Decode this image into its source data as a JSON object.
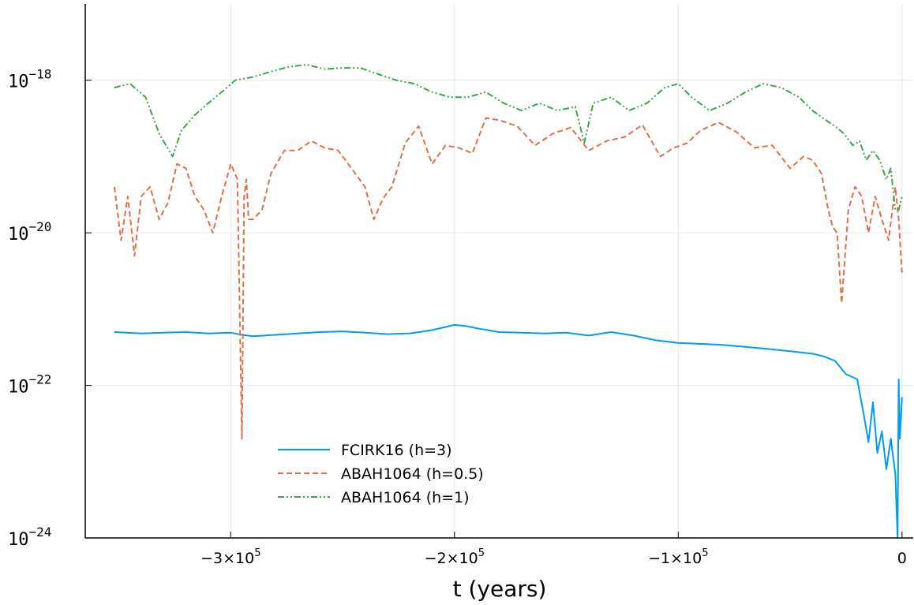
{
  "chart_data": {
    "type": "line",
    "title": "",
    "xlabel": "t (years)",
    "ylabel": "",
    "xlim": [
      -365000,
      5000
    ],
    "ylim": [
      1e-24,
      1e-17
    ],
    "y_scale": "log",
    "grid": true,
    "legend_position": "bottom-left",
    "x_ticks": [
      {
        "value": -300000,
        "label": "−3×10",
        "exp": "5"
      },
      {
        "value": -200000,
        "label": "−2×10",
        "exp": "5"
      },
      {
        "value": -100000,
        "label": "−1×10",
        "exp": "5"
      },
      {
        "value": 0,
        "label": "0",
        "exp": ""
      }
    ],
    "y_ticks": [
      {
        "value": 1e-18,
        "label": "10",
        "exp": "−18"
      },
      {
        "value": 1e-20,
        "label": "10",
        "exp": "−20"
      },
      {
        "value": 1e-22,
        "label": "10",
        "exp": "−22"
      },
      {
        "value": 1e-24,
        "label": "10",
        "exp": "−24"
      }
    ],
    "series": [
      {
        "name": "FCIRK16 (h=3)",
        "color": "#009af9",
        "dash": "solid",
        "x": [
          -352000,
          -340000,
          -330000,
          -320000,
          -310000,
          -300000,
          -295000,
          -290000,
          -280000,
          -270000,
          -260000,
          -250000,
          -240000,
          -230000,
          -220000,
          -210000,
          -200000,
          -195000,
          -190000,
          -180000,
          -170000,
          -160000,
          -150000,
          -140000,
          -130000,
          -120000,
          -110000,
          -100000,
          -90000,
          -80000,
          -70000,
          -60000,
          -50000,
          -45000,
          -40000,
          -35000,
          -30000,
          -25000,
          -20000,
          -17000,
          -15000,
          -13000,
          -11000,
          -9000,
          -7000,
          -5000,
          -3000,
          -2000,
          -1500,
          -1000,
          0
        ],
        "y": [
          5e-22,
          4.8e-22,
          4.9e-22,
          5e-22,
          4.8e-22,
          4.9e-22,
          4.6e-22,
          4.4e-22,
          4.6e-22,
          4.8e-22,
          5e-22,
          5.1e-22,
          4.9e-22,
          4.7e-22,
          4.8e-22,
          5.3e-22,
          6.2e-22,
          6e-22,
          5.6e-22,
          5e-22,
          4.9e-22,
          4.8e-22,
          4.9e-22,
          4.5e-22,
          5e-22,
          4.5e-22,
          3.9e-22,
          3.6e-22,
          3.5e-22,
          3.4e-22,
          3.2e-22,
          3e-22,
          2.8e-22,
          2.7e-22,
          2.6e-22,
          2.4e-22,
          2.1e-22,
          1.4e-22,
          1.2e-22,
          4e-23,
          1.8e-23,
          6e-23,
          1.3e-23,
          2.5e-23,
          8e-24,
          2e-23,
          7e-24,
          1e-24,
          1.2e-22,
          2e-23,
          7e-23
        ]
      },
      {
        "name": "ABAH1064 (h=0.5)",
        "color": "#e26f46",
        "dash": "dashed",
        "x": [
          -352000,
          -349000,
          -346000,
          -343000,
          -340000,
          -336000,
          -332000,
          -328000,
          -324000,
          -320000,
          -316000,
          -312000,
          -308000,
          -304000,
          -300000,
          -297000,
          -295000,
          -294000,
          -293000,
          -292000,
          -290000,
          -286000,
          -282000,
          -276000,
          -270000,
          -264000,
          -258000,
          -252000,
          -246000,
          -240000,
          -236000,
          -232000,
          -228000,
          -222000,
          -216000,
          -210000,
          -204000,
          -198000,
          -192000,
          -186000,
          -180000,
          -172000,
          -164000,
          -156000,
          -148000,
          -140000,
          -132000,
          -124000,
          -116000,
          -108000,
          -102000,
          -96000,
          -90000,
          -82000,
          -74000,
          -66000,
          -58000,
          -50000,
          -44000,
          -40000,
          -36000,
          -33000,
          -31000,
          -29000,
          -27000,
          -24000,
          -21000,
          -18000,
          -15000,
          -12000,
          -9000,
          -6000,
          -3000,
          -1500,
          0
        ],
        "y": [
          4e-20,
          8e-21,
          3e-20,
          5e-21,
          3e-20,
          4e-20,
          1.5e-20,
          2.5e-20,
          8e-20,
          7e-20,
          3e-20,
          2e-20,
          1e-20,
          3e-20,
          8e-20,
          5e-20,
          2e-23,
          3e-20,
          5e-20,
          1.5e-20,
          1.5e-20,
          2e-20,
          6e-20,
          1.2e-19,
          1.2e-19,
          1.6e-19,
          1.3e-19,
          1.2e-19,
          7e-20,
          4e-20,
          1.5e-20,
          2.8e-20,
          4e-20,
          1.5e-19,
          2.5e-19,
          8e-20,
          1.4e-19,
          1.3e-19,
          1.1e-19,
          3.2e-19,
          3e-19,
          2.5e-19,
          1.4e-19,
          2e-19,
          2.4e-19,
          1.2e-19,
          1.6e-19,
          1.8e-19,
          2.6e-19,
          1e-19,
          1.3e-19,
          1.5e-19,
          2.2e-19,
          2.8e-19,
          2.1e-19,
          1.3e-19,
          1.4e-19,
          7e-20,
          1e-19,
          9e-20,
          6e-20,
          2e-20,
          1.2e-20,
          1e-20,
          1.2e-21,
          2e-20,
          4e-20,
          3e-20,
          1e-20,
          3e-20,
          1.5e-20,
          8e-21,
          4e-20,
          1.5e-20,
          3e-21
        ]
      },
      {
        "name": "ABAH1064 (h=1)",
        "color": "#3da44d",
        "dash": "dashdotdot",
        "x": [
          -352000,
          -345000,
          -338000,
          -332000,
          -326000,
          -322000,
          -316000,
          -310000,
          -304000,
          -298000,
          -290000,
          -282000,
          -274000,
          -266000,
          -258000,
          -250000,
          -242000,
          -234000,
          -226000,
          -218000,
          -210000,
          -202000,
          -194000,
          -186000,
          -178000,
          -170000,
          -162000,
          -154000,
          -146000,
          -142000,
          -138000,
          -130000,
          -122000,
          -114000,
          -106000,
          -100000,
          -94000,
          -86000,
          -78000,
          -70000,
          -62000,
          -54000,
          -46000,
          -40000,
          -34000,
          -30000,
          -26000,
          -22000,
          -19000,
          -16000,
          -13000,
          -10000,
          -7000,
          -5000,
          -3000,
          -1500,
          0
        ],
        "y": [
          8e-19,
          9e-19,
          6e-19,
          2e-19,
          1e-19,
          2.2e-19,
          3.5e-19,
          5e-19,
          7e-19,
          1e-18,
          1.1e-18,
          1.3e-18,
          1.5e-18,
          1.6e-18,
          1.4e-18,
          1.45e-18,
          1.45e-18,
          1.2e-18,
          1e-18,
          9e-19,
          7e-19,
          6e-19,
          6e-19,
          7e-19,
          5e-19,
          4e-19,
          5e-19,
          4e-19,
          4.5e-19,
          1.5e-19,
          5e-19,
          6e-19,
          4e-19,
          5e-19,
          8e-19,
          9e-19,
          6e-19,
          4e-19,
          5e-19,
          7e-19,
          9e-19,
          8e-19,
          6e-19,
          4e-19,
          3e-19,
          2.5e-19,
          2e-19,
          1.4e-19,
          1.6e-19,
          9e-20,
          1.2e-19,
          9e-20,
          5e-20,
          7e-20,
          2e-20,
          2e-20,
          3e-20
        ]
      }
    ]
  }
}
